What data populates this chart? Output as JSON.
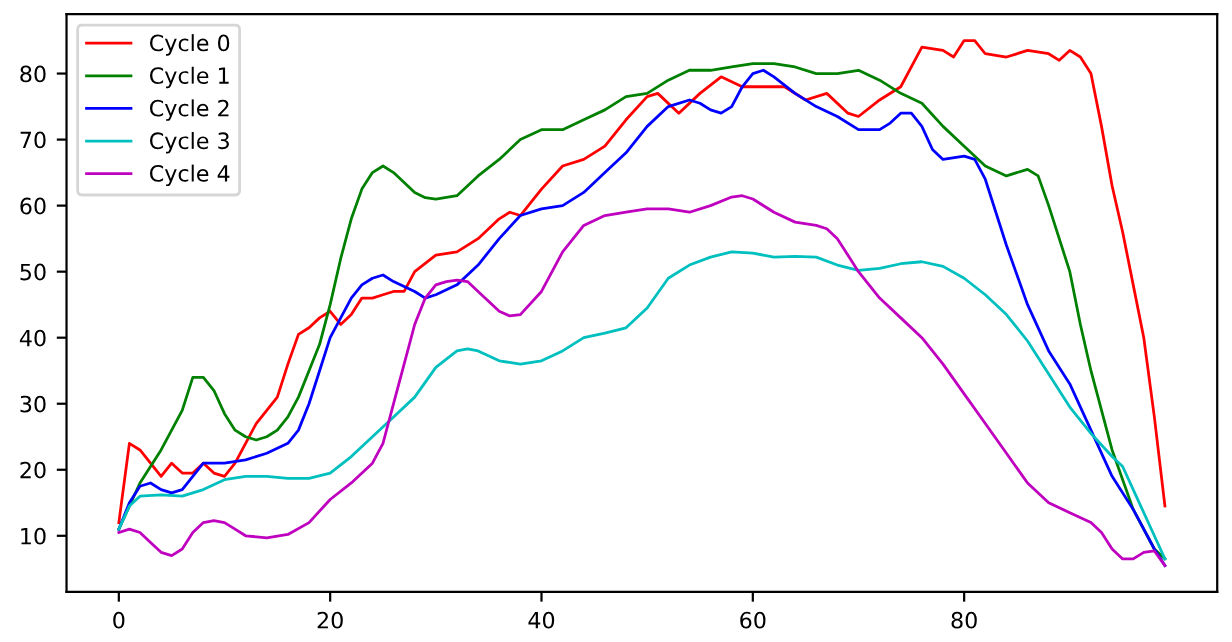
{
  "chart_data": {
    "type": "line",
    "xlim": [
      -4.95,
      103.95
    ],
    "ylim": [
      1.5,
      89
    ],
    "xticks": [
      0,
      20,
      40,
      60,
      80
    ],
    "yticks": [
      10,
      20,
      30,
      40,
      50,
      60,
      70,
      80
    ],
    "grid": false,
    "legend": "top left",
    "marker": "none",
    "line_style": "solid",
    "series": [
      {
        "name": "Cycle 0",
        "color": "#ff0000",
        "x": [
          0,
          1,
          2,
          3,
          4,
          5,
          6,
          7,
          8,
          9,
          10,
          11,
          12,
          13,
          14,
          15,
          16,
          17,
          18,
          19,
          20,
          21,
          22,
          23,
          24,
          25,
          26,
          27,
          28,
          30,
          32,
          34,
          36,
          37,
          38,
          40,
          42,
          44,
          46,
          48,
          50,
          51,
          53,
          55,
          57,
          59,
          61,
          63,
          65,
          67,
          69,
          70,
          72,
          74,
          76,
          78,
          79,
          80,
          81,
          82,
          84,
          86,
          88,
          89,
          90,
          91,
          92,
          93,
          94,
          95,
          96,
          97,
          98,
          99
        ],
        "values": [
          12,
          24,
          23,
          21,
          19,
          21,
          19.5,
          19.5,
          21,
          19.5,
          19,
          21,
          24,
          27,
          29,
          31,
          36,
          40.5,
          41.5,
          43,
          44,
          42,
          43.5,
          46,
          46,
          46.5,
          47,
          47,
          50,
          52.5,
          53,
          55,
          58,
          59,
          58.5,
          62.5,
          66,
          67,
          69,
          73,
          76.5,
          77,
          74,
          77,
          79.5,
          78,
          78,
          78,
          76,
          77,
          74,
          73.5,
          76,
          78,
          84,
          83.5,
          82.5,
          85,
          85,
          83,
          82.5,
          83.5,
          83,
          82,
          83.5,
          82.5,
          80,
          72,
          63,
          56,
          48,
          40,
          28,
          14.5
        ]
      },
      {
        "name": "Cycle 1",
        "color": "#008000",
        "x": [
          0,
          2,
          4,
          6,
          7,
          8,
          9,
          10,
          11,
          12,
          13,
          14,
          15,
          16,
          17,
          18,
          19,
          20,
          21,
          22,
          23,
          24,
          25,
          26,
          27,
          28,
          29,
          30,
          32,
          34,
          36,
          38,
          40,
          42,
          44,
          46,
          48,
          50,
          52,
          54,
          56,
          58,
          60,
          62,
          64,
          66,
          68,
          70,
          72,
          74,
          76,
          78,
          80,
          82,
          84,
          86,
          87,
          88,
          90,
          91,
          92,
          94,
          96,
          98,
          99
        ],
        "values": [
          11,
          18,
          23,
          29,
          34,
          34,
          32,
          28.5,
          26,
          25,
          24.5,
          25,
          26,
          28,
          31,
          35,
          39,
          45,
          52,
          58,
          62.5,
          65,
          66,
          65,
          63.5,
          62,
          61.2,
          61,
          61.5,
          64.5,
          67,
          70,
          71.5,
          71.5,
          73,
          74.5,
          76.5,
          77,
          79,
          80.5,
          80.5,
          81,
          81.5,
          81.5,
          81,
          80,
          80,
          80.5,
          79,
          77,
          75.5,
          72,
          69,
          66,
          64.5,
          65.5,
          64.5,
          60,
          50,
          42,
          35,
          23,
          14,
          8,
          6.5
        ]
      },
      {
        "name": "Cycle 2",
        "color": "#0000ff",
        "x": [
          0,
          1,
          2,
          3,
          4,
          5,
          6,
          7,
          8,
          9,
          10,
          12,
          14,
          16,
          17,
          18,
          19,
          20,
          21,
          22,
          23,
          24,
          25,
          26,
          28,
          29,
          30,
          32,
          34,
          36,
          38,
          40,
          42,
          44,
          46,
          48,
          50,
          52,
          54,
          55,
          56,
          57,
          58,
          59,
          60,
          61,
          62,
          64,
          66,
          68,
          70,
          72,
          73,
          74,
          75,
          76,
          77,
          78,
          80,
          81,
          82,
          84,
          86,
          88,
          90,
          92,
          94,
          96,
          98,
          99
        ],
        "values": [
          11,
          15,
          17.5,
          18,
          17,
          16.5,
          17,
          19,
          21,
          21,
          21,
          21.5,
          22.5,
          24,
          26,
          30,
          35,
          40,
          43,
          46,
          48,
          49,
          49.5,
          48.5,
          47,
          46,
          46.5,
          48,
          51,
          55,
          58.5,
          59.5,
          60,
          62,
          65,
          68,
          72,
          75,
          76,
          75.5,
          74.5,
          74,
          75,
          78,
          80,
          80.5,
          79.5,
          77,
          75,
          73.5,
          71.5,
          71.5,
          72.5,
          74,
          74,
          72,
          68.5,
          67,
          67.5,
          67,
          64,
          54,
          45,
          38,
          33,
          26,
          19,
          14,
          8,
          5.5
        ]
      },
      {
        "name": "Cycle 3",
        "color": "#00bfbf",
        "x": [
          0,
          1,
          2,
          4,
          6,
          8,
          10,
          12,
          14,
          16,
          18,
          20,
          22,
          24,
          26,
          28,
          30,
          32,
          33,
          34,
          36,
          38,
          40,
          42,
          44,
          46,
          48,
          50,
          52,
          54,
          56,
          58,
          60,
          62,
          64,
          66,
          68,
          70,
          72,
          74,
          76,
          78,
          80,
          82,
          84,
          86,
          88,
          90,
          92,
          94,
          95,
          96,
          98,
          99
        ],
        "values": [
          11,
          14.5,
          16,
          16.2,
          16,
          17,
          18.5,
          19,
          19,
          18.7,
          18.7,
          19.5,
          22,
          25,
          28,
          31,
          35.5,
          38,
          38.3,
          38,
          36.5,
          36,
          36.5,
          38,
          40,
          40.7,
          41.5,
          44.5,
          49,
          51,
          52.2,
          53,
          52.8,
          52.2,
          52.3,
          52.2,
          51,
          50.2,
          50.5,
          51.2,
          51.5,
          50.8,
          49,
          46.5,
          43.5,
          39.5,
          34.5,
          29.5,
          25.5,
          22,
          20.5,
          17,
          10,
          6.5
        ]
      },
      {
        "name": "Cycle 4",
        "color": "#bf00bf",
        "x": [
          0,
          1,
          2,
          3,
          4,
          5,
          6,
          7,
          8,
          9,
          10,
          11,
          12,
          14,
          16,
          18,
          20,
          22,
          24,
          25,
          26,
          27,
          28,
          29,
          30,
          31,
          32,
          33,
          34,
          36,
          37,
          38,
          40,
          42,
          44,
          46,
          48,
          50,
          52,
          54,
          56,
          58,
          59,
          60,
          62,
          64,
          66,
          67,
          68,
          70,
          72,
          74,
          76,
          78,
          80,
          82,
          84,
          86,
          88,
          90,
          92,
          93,
          94,
          95,
          96,
          97,
          98,
          99
        ],
        "values": [
          10.5,
          11,
          10.5,
          9,
          7.5,
          7,
          8,
          10.5,
          12,
          12.3,
          12,
          11,
          10,
          9.7,
          10.2,
          12,
          15.5,
          18,
          21,
          24,
          30,
          36,
          42,
          46,
          48,
          48.5,
          48.7,
          48.5,
          47,
          44,
          43.3,
          43.5,
          47,
          53,
          57,
          58.5,
          59,
          59.5,
          59.5,
          59,
          60,
          61.3,
          61.5,
          61,
          59,
          57.5,
          57,
          56.5,
          55,
          50,
          46,
          43,
          40,
          36,
          31.5,
          27,
          22.5,
          18,
          15,
          13.5,
          12,
          10.5,
          8,
          6.5,
          6.5,
          7.5,
          7.7,
          5.5
        ]
      }
    ]
  }
}
